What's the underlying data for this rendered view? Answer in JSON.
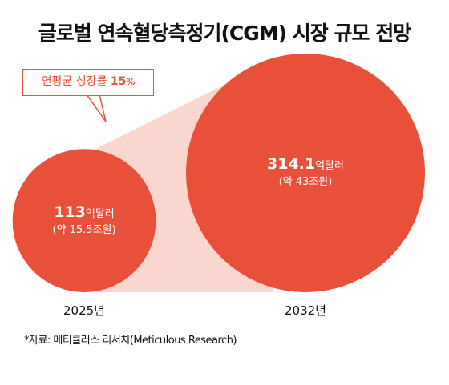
{
  "title": "글로벌 연속혈당측정기(CGM) 시장 규모 전망",
  "callout": {
    "text": "연평균 성장률",
    "value": "15",
    "unit": "%"
  },
  "source": "*자료: 메티큘러스 리서치(Meticulous Research)",
  "colors": {
    "bubble": "#e8503a",
    "cone": "#f9d7cf",
    "text": "#111111"
  },
  "chart_data": {
    "type": "bubble",
    "title": "글로벌 연속혈당측정기(CGM) 시장 규모 전망",
    "annotation": "연평균 성장률 15%",
    "unit": "억달러",
    "points": [
      {
        "year": "2025년",
        "value": 113,
        "value_label": "113",
        "sub_label": "(약 15.5조원)"
      },
      {
        "year": "2032년",
        "value": 314.1,
        "value_label": "314.1",
        "sub_label": "(약 43조원)"
      }
    ]
  }
}
